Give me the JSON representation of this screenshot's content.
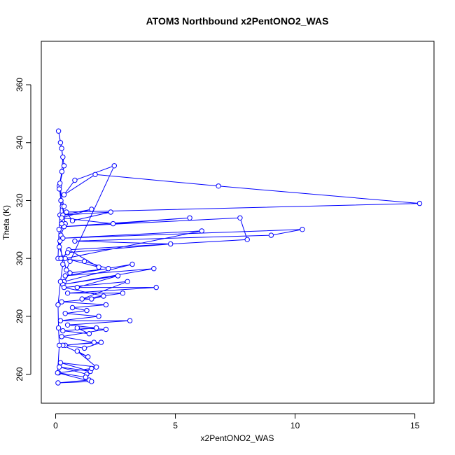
{
  "chart_data": {
    "type": "line",
    "title": "ATOM3 Northbound x2PentONO2_WAS",
    "xlabel": "x2PentONO2_WAS",
    "ylabel": "Theta (K)",
    "xlim": [
      -0.6,
      15.8
    ],
    "ylim": [
      250,
      375
    ],
    "xticks": [
      0,
      5,
      10,
      15
    ],
    "xtick_labels": [
      "0",
      "5",
      "10",
      "15"
    ],
    "yticks": [
      260,
      280,
      300,
      320,
      340,
      360
    ],
    "ytick_labels": [
      "260",
      "280",
      "300",
      "320",
      "340",
      "360"
    ],
    "grid": false,
    "legend": "none",
    "series_color": "#0000ff",
    "marker": "open-circle",
    "series": [
      {
        "x": [
          0.1,
          0.14,
          0.18,
          0.22,
          0.15,
          0.26,
          0.3,
          0.2,
          0.12,
          0.25,
          0.35,
          0.18,
          0.28,
          0.4,
          0.22,
          0.15,
          0.32,
          0.45,
          0.6,
          2.45,
          0.8,
          0.35,
          1.65,
          6.8,
          15.2,
          0.45,
          0.7,
          2.3,
          0.3,
          1.5,
          0.25,
          2.4,
          5.6,
          0.35,
          7.7,
          8.0,
          0.55,
          1.8,
          0.4,
          6.1,
          0.3,
          10.3,
          9.0,
          0.8,
          4.8,
          0.5,
          0.22,
          1.2,
          2.2,
          0.6,
          0.35,
          3.2,
          0.4,
          4.1,
          0.3,
          2.6,
          0.9,
          4.2,
          0.5,
          2.8,
          1.1,
          3.0,
          0.35,
          2.0,
          1.5,
          0.25,
          2.1,
          0.7,
          1.3,
          0.4,
          1.8,
          0.2,
          3.1,
          0.5,
          1.7,
          0.3,
          1.4,
          0.9,
          2.1,
          0.25,
          1.6,
          0.4,
          1.2,
          1.9,
          0.3,
          1.35,
          0.9,
          1.7,
          0.2,
          1.45,
          0.15,
          1.3,
          1.5,
          0.12,
          1.25,
          1.4,
          0.1,
          1.5,
          0.08,
          0.15,
          0.12,
          0.1,
          0.2,
          0.3,
          0.18,
          0.25,
          0.35,
          0.15
        ],
        "y": [
          300,
          310,
          315,
          320,
          325,
          330,
          335,
          340,
          344,
          338,
          332,
          326,
          318,
          312,
          308,
          304,
          300,
          296,
          299,
          332,
          327,
          322,
          329,
          325,
          319,
          316,
          313,
          316,
          315,
          317,
          314,
          312,
          314,
          311,
          314,
          306.5,
          303,
          297,
          300,
          309.5,
          307,
          310,
          308,
          306,
          305,
          302,
          300,
          299,
          296.5,
          295,
          292,
          298,
          294,
          296.5,
          291,
          294,
          290,
          290,
          288,
          288,
          286,
          292,
          290,
          287,
          286,
          285,
          284,
          283,
          282,
          281,
          280,
          278.5,
          278.5,
          277,
          276,
          275,
          274,
          276,
          275.5,
          273,
          271,
          270,
          269,
          271,
          270,
          266,
          268,
          262.5,
          264,
          261,
          262.5,
          260,
          262,
          260.5,
          259,
          258,
          257,
          257.5,
          260.5,
          270,
          276,
          284,
          292,
          298,
          306,
          312,
          318,
          324
        ]
      }
    ]
  }
}
